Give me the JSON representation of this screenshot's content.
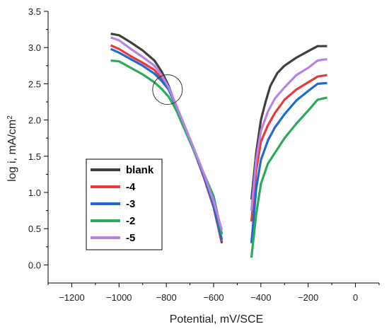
{
  "chart_data": {
    "type": "line",
    "xlabel": "Potential, mV/SCE",
    "ylabel_main": "log i, mA/cm",
    "ylabel_sup": "2",
    "xlim": [
      -1300,
      100
    ],
    "ylim": [
      -0.25,
      3.5
    ],
    "x_ticks": [
      -1200,
      -1000,
      -800,
      -600,
      -400,
      -200,
      0
    ],
    "y_ticks": [
      0.0,
      0.5,
      1.0,
      1.5,
      2.0,
      2.5,
      3.0,
      3.5
    ],
    "y_tick_labels": [
      "0.0",
      "0.5",
      "1.0",
      "1.5",
      "2.0",
      "2.5",
      "3.0",
      "3.5"
    ],
    "legend_position": "lower-left",
    "annotation": {
      "shape": "circle",
      "x": -795,
      "y": 2.42
    },
    "series": [
      {
        "name": "blank",
        "color": "#404040",
        "cathodic": [
          [
            -1035,
            3.19
          ],
          [
            -1000,
            3.17
          ],
          [
            -950,
            3.07
          ],
          [
            -900,
            2.96
          ],
          [
            -850,
            2.82
          ],
          [
            -820,
            2.67
          ],
          [
            -790,
            2.47
          ],
          [
            -760,
            2.2
          ],
          [
            -720,
            1.88
          ],
          [
            -680,
            1.55
          ],
          [
            -640,
            1.2
          ],
          [
            -600,
            0.8
          ],
          [
            -565,
            0.3
          ]
        ],
        "anodic": [
          [
            -440,
            0.9
          ],
          [
            -420,
            1.55
          ],
          [
            -400,
            2.0
          ],
          [
            -380,
            2.25
          ],
          [
            -360,
            2.47
          ],
          [
            -330,
            2.65
          ],
          [
            -300,
            2.75
          ],
          [
            -250,
            2.86
          ],
          [
            -200,
            2.95
          ],
          [
            -160,
            3.02
          ],
          [
            -120,
            3.02
          ]
        ]
      },
      {
        "name": "-4",
        "color": "#e8393b",
        "cathodic": [
          [
            -1035,
            3.03
          ],
          [
            -1000,
            2.98
          ],
          [
            -950,
            2.88
          ],
          [
            -900,
            2.79
          ],
          [
            -850,
            2.69
          ],
          [
            -820,
            2.57
          ],
          [
            -790,
            2.42
          ],
          [
            -760,
            2.2
          ],
          [
            -720,
            1.88
          ],
          [
            -680,
            1.55
          ],
          [
            -640,
            1.2
          ],
          [
            -600,
            0.8
          ],
          [
            -565,
            0.32
          ]
        ],
        "anodic": [
          [
            -440,
            0.6
          ],
          [
            -420,
            1.3
          ],
          [
            -400,
            1.7
          ],
          [
            -370,
            1.93
          ],
          [
            -340,
            2.1
          ],
          [
            -300,
            2.28
          ],
          [
            -250,
            2.42
          ],
          [
            -200,
            2.52
          ],
          [
            -160,
            2.6
          ],
          [
            -120,
            2.62
          ]
        ]
      },
      {
        "name": "-3",
        "color": "#1f6ad1",
        "cathodic": [
          [
            -1035,
            2.98
          ],
          [
            -1000,
            2.93
          ],
          [
            -950,
            2.84
          ],
          [
            -900,
            2.75
          ],
          [
            -850,
            2.64
          ],
          [
            -820,
            2.54
          ],
          [
            -790,
            2.42
          ],
          [
            -760,
            2.2
          ],
          [
            -720,
            1.88
          ],
          [
            -680,
            1.55
          ],
          [
            -640,
            1.22
          ],
          [
            -600,
            0.82
          ],
          [
            -565,
            0.35
          ]
        ],
        "anodic": [
          [
            -440,
            0.3
          ],
          [
            -420,
            1.05
          ],
          [
            -400,
            1.45
          ],
          [
            -370,
            1.72
          ],
          [
            -340,
            1.9
          ],
          [
            -300,
            2.08
          ],
          [
            -250,
            2.27
          ],
          [
            -200,
            2.4
          ],
          [
            -160,
            2.5
          ],
          [
            -120,
            2.51
          ]
        ]
      },
      {
        "name": "-2",
        "color": "#2bab5a",
        "cathodic": [
          [
            -1035,
            2.82
          ],
          [
            -1000,
            2.81
          ],
          [
            -950,
            2.72
          ],
          [
            -900,
            2.63
          ],
          [
            -850,
            2.52
          ],
          [
            -820,
            2.43
          ],
          [
            -790,
            2.32
          ],
          [
            -760,
            2.15
          ],
          [
            -720,
            1.85
          ],
          [
            -680,
            1.55
          ],
          [
            -640,
            1.25
          ],
          [
            -600,
            0.95
          ],
          [
            -565,
            0.42
          ]
        ],
        "anodic": [
          [
            -440,
            0.1
          ],
          [
            -420,
            0.7
          ],
          [
            -400,
            1.12
          ],
          [
            -370,
            1.4
          ],
          [
            -330,
            1.6
          ],
          [
            -300,
            1.75
          ],
          [
            -250,
            1.95
          ],
          [
            -200,
            2.13
          ],
          [
            -160,
            2.28
          ],
          [
            -120,
            2.31
          ]
        ]
      },
      {
        "name": "-5",
        "color": "#b882e8",
        "cathodic": [
          [
            -1035,
            3.14
          ],
          [
            -1000,
            3.1
          ],
          [
            -950,
            2.98
          ],
          [
            -900,
            2.87
          ],
          [
            -850,
            2.75
          ],
          [
            -820,
            2.62
          ],
          [
            -790,
            2.45
          ],
          [
            -760,
            2.22
          ],
          [
            -720,
            1.9
          ],
          [
            -680,
            1.58
          ],
          [
            -640,
            1.25
          ],
          [
            -600,
            0.88
          ],
          [
            -565,
            0.48
          ]
        ],
        "anodic": [
          [
            -440,
            0.75
          ],
          [
            -420,
            1.45
          ],
          [
            -400,
            1.85
          ],
          [
            -370,
            2.12
          ],
          [
            -340,
            2.3
          ],
          [
            -300,
            2.45
          ],
          [
            -250,
            2.62
          ],
          [
            -200,
            2.72
          ],
          [
            -160,
            2.82
          ],
          [
            -120,
            2.84
          ]
        ]
      }
    ]
  }
}
